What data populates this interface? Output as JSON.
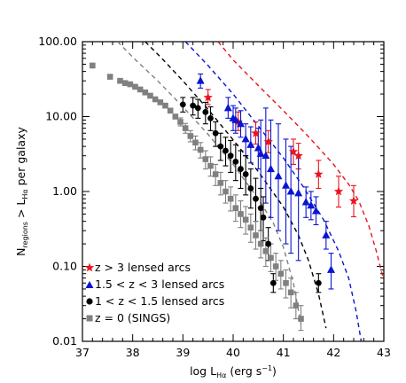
{
  "chart_data": {
    "type": "scatter",
    "xlabel": "log L",
    "xlabel_sub": "Hα",
    "xlabel_unit_prefix": " (erg s",
    "xlabel_unit_sup": "−1",
    "xlabel_unit_suffix": ")",
    "ylabel_n": "N",
    "ylabel_n_sub": "regions",
    "ylabel_mid": " > L",
    "ylabel_l_sub": "Hα",
    "ylabel_end": " per galaxy",
    "xlim": [
      37,
      43
    ],
    "ylim": [
      0.01,
      100
    ],
    "yscale": "log",
    "x_ticks": [
      "37",
      "38",
      "39",
      "40",
      "41",
      "42",
      "43"
    ],
    "x_tick_values": [
      37,
      38,
      39,
      40,
      41,
      42,
      43
    ],
    "y_ticks": [
      "0.01",
      "0.10",
      "1.00",
      "10.00",
      "100.00"
    ],
    "y_tick_values": [
      0.01,
      0.1,
      1,
      10,
      100
    ],
    "legend_position": "bottom-left",
    "series": [
      {
        "name": "z > 3 lensed arcs",
        "color": "#e8141e",
        "marker": "star",
        "points": [
          {
            "x": 39.5,
            "y": 18,
            "lo": 14.5,
            "hi": 23
          },
          {
            "x": 40.1,
            "y": 8.5,
            "lo": 6.5,
            "hi": 11.5
          },
          {
            "x": 40.45,
            "y": 6.0,
            "lo": 4.3,
            "hi": 8.5
          },
          {
            "x": 40.7,
            "y": 4.6,
            "lo": 3.3,
            "hi": 6.5
          },
          {
            "x": 41.2,
            "y": 3.4,
            "lo": 2.3,
            "hi": 5.0
          },
          {
            "x": 41.3,
            "y": 3.0,
            "lo": 2.0,
            "hi": 4.4
          },
          {
            "x": 41.7,
            "y": 1.7,
            "lo": 1.1,
            "hi": 2.6
          },
          {
            "x": 42.1,
            "y": 1.0,
            "lo": 0.62,
            "hi": 1.6
          },
          {
            "x": 42.4,
            "y": 0.75,
            "lo": 0.46,
            "hi": 1.2
          }
        ]
      },
      {
        "name": "1.5 < z < 3 lensed arcs",
        "color": "#0a14d2",
        "marker": "triangle",
        "points": [
          {
            "x": 39.35,
            "y": 30,
            "lo": 24,
            "hi": 37
          },
          {
            "x": 39.9,
            "y": 13,
            "lo": 9.5,
            "hi": 18
          },
          {
            "x": 40.0,
            "y": 9.5,
            "lo": 6.5,
            "hi": 14
          },
          {
            "x": 40.05,
            "y": 9.0,
            "lo": 6.0,
            "hi": 13
          },
          {
            "x": 40.15,
            "y": 8.0,
            "lo": 5.3,
            "hi": 12
          },
          {
            "x": 40.25,
            "y": 5.0,
            "lo": 3.0,
            "hi": 8.0
          },
          {
            "x": 40.35,
            "y": 4.2,
            "lo": 2.4,
            "hi": 7.3
          },
          {
            "x": 40.5,
            "y": 3.8,
            "lo": 2.0,
            "hi": 7.0
          },
          {
            "x": 40.55,
            "y": 3.2,
            "lo": 1.1,
            "hi": 9.0
          },
          {
            "x": 40.65,
            "y": 3.0,
            "lo": 0.7,
            "hi": 13
          },
          {
            "x": 40.75,
            "y": 2.0,
            "lo": 0.45,
            "hi": 9.0
          },
          {
            "x": 40.9,
            "y": 1.6,
            "lo": 0.3,
            "hi": 8.0
          },
          {
            "x": 41.05,
            "y": 1.2,
            "lo": 0.2,
            "hi": 5.0
          },
          {
            "x": 41.15,
            "y": 1.0,
            "lo": 0.15,
            "hi": 4.0
          },
          {
            "x": 41.3,
            "y": 0.95,
            "lo": 0.12,
            "hi": 3.0
          },
          {
            "x": 41.45,
            "y": 0.72,
            "lo": 0.45,
            "hi": 1.15
          },
          {
            "x": 41.55,
            "y": 0.65,
            "lo": 0.42,
            "hi": 1.0
          },
          {
            "x": 41.65,
            "y": 0.55,
            "lo": 0.36,
            "hi": 0.85
          },
          {
            "x": 41.85,
            "y": 0.26,
            "lo": 0.17,
            "hi": 0.4
          },
          {
            "x": 41.95,
            "y": 0.09,
            "lo": 0.05,
            "hi": 0.15
          }
        ]
      },
      {
        "name": "1 < z < 1.5 lensed arcs",
        "color": "#000000",
        "marker": "circle",
        "points": [
          {
            "x": 39.0,
            "y": 14.5,
            "lo": 11.5,
            "hi": 18
          },
          {
            "x": 39.2,
            "y": 14.0,
            "lo": 10.5,
            "hi": 18
          },
          {
            "x": 39.3,
            "y": 13.0,
            "lo": 9.5,
            "hi": 17
          },
          {
            "x": 39.45,
            "y": 11.5,
            "lo": 8.0,
            "hi": 15.5
          },
          {
            "x": 39.55,
            "y": 9.5,
            "lo": 6.5,
            "hi": 13.5
          },
          {
            "x": 39.65,
            "y": 6.0,
            "lo": 4.0,
            "hi": 8.5
          },
          {
            "x": 39.75,
            "y": 4.0,
            "lo": 2.6,
            "hi": 6.0
          },
          {
            "x": 39.85,
            "y": 3.5,
            "lo": 2.2,
            "hi": 5.3
          },
          {
            "x": 39.95,
            "y": 3.0,
            "lo": 1.8,
            "hi": 4.8
          },
          {
            "x": 40.05,
            "y": 2.5,
            "lo": 1.4,
            "hi": 4.2
          },
          {
            "x": 40.15,
            "y": 2.0,
            "lo": 1.1,
            "hi": 3.5
          },
          {
            "x": 40.25,
            "y": 1.7,
            "lo": 0.9,
            "hi": 3.0
          },
          {
            "x": 40.35,
            "y": 1.1,
            "lo": 0.6,
            "hi": 2.0
          },
          {
            "x": 40.45,
            "y": 0.8,
            "lo": 0.4,
            "hi": 1.5
          },
          {
            "x": 40.55,
            "y": 0.6,
            "lo": 0.3,
            "hi": 1.1
          },
          {
            "x": 40.6,
            "y": 0.45,
            "lo": 0.22,
            "hi": 0.85
          },
          {
            "x": 40.7,
            "y": 0.2,
            "lo": 0.12,
            "hi": 0.33
          },
          {
            "x": 40.8,
            "y": 0.06,
            "lo": 0.045,
            "hi": 0.08
          },
          {
            "x": 41.7,
            "y": 0.06,
            "lo": 0.045,
            "hi": 0.08
          }
        ]
      },
      {
        "name": "z = 0 (SINGS)",
        "color": "#808080",
        "marker": "square",
        "points": [
          {
            "x": 37.2,
            "y": 48
          },
          {
            "x": 37.55,
            "y": 34
          },
          {
            "x": 37.75,
            "y": 30
          },
          {
            "x": 37.85,
            "y": 28
          },
          {
            "x": 37.95,
            "y": 27
          },
          {
            "x": 38.05,
            "y": 25
          },
          {
            "x": 38.15,
            "y": 23
          },
          {
            "x": 38.25,
            "y": 21
          },
          {
            "x": 38.35,
            "y": 19
          },
          {
            "x": 38.45,
            "y": 17
          },
          {
            "x": 38.55,
            "y": 15.5
          },
          {
            "x": 38.65,
            "y": 14
          },
          {
            "x": 38.75,
            "y": 12
          },
          {
            "x": 38.85,
            "y": 10
          },
          {
            "x": 38.95,
            "y": 8.5,
            "lo": 7.5,
            "hi": 9.6
          },
          {
            "x": 39.05,
            "y": 7.0,
            "lo": 6.0,
            "hi": 8.1
          },
          {
            "x": 39.15,
            "y": 5.5,
            "lo": 4.6,
            "hi": 6.5
          },
          {
            "x": 39.25,
            "y": 4.5,
            "lo": 3.6,
            "hi": 5.5
          },
          {
            "x": 39.35,
            "y": 3.6,
            "lo": 2.8,
            "hi": 4.5
          },
          {
            "x": 39.45,
            "y": 2.7,
            "lo": 2.0,
            "hi": 3.5
          },
          {
            "x": 39.55,
            "y": 2.2,
            "lo": 1.6,
            "hi": 2.9
          },
          {
            "x": 39.65,
            "y": 1.7,
            "lo": 1.2,
            "hi": 2.3
          },
          {
            "x": 39.75,
            "y": 1.3,
            "lo": 0.9,
            "hi": 1.8
          },
          {
            "x": 39.85,
            "y": 1.0,
            "lo": 0.7,
            "hi": 1.4
          },
          {
            "x": 39.95,
            "y": 0.8,
            "lo": 0.55,
            "hi": 1.15
          },
          {
            "x": 40.05,
            "y": 0.6,
            "lo": 0.4,
            "hi": 0.9
          },
          {
            "x": 40.15,
            "y": 0.5,
            "lo": 0.33,
            "hi": 0.75
          },
          {
            "x": 40.25,
            "y": 0.42,
            "lo": 0.27,
            "hi": 0.63
          },
          {
            "x": 40.35,
            "y": 0.33,
            "lo": 0.21,
            "hi": 0.5
          },
          {
            "x": 40.45,
            "y": 0.26,
            "lo": 0.17,
            "hi": 0.4
          },
          {
            "x": 40.55,
            "y": 0.2,
            "lo": 0.13,
            "hi": 0.3
          },
          {
            "x": 40.65,
            "y": 0.16,
            "lo": 0.1,
            "hi": 0.24
          },
          {
            "x": 40.75,
            "y": 0.13,
            "lo": 0.085,
            "hi": 0.2
          },
          {
            "x": 40.85,
            "y": 0.1,
            "lo": 0.065,
            "hi": 0.15
          },
          {
            "x": 40.95,
            "y": 0.08,
            "lo": 0.05,
            "hi": 0.12
          },
          {
            "x": 41.05,
            "y": 0.06,
            "lo": 0.038,
            "hi": 0.09
          },
          {
            "x": 41.15,
            "y": 0.045,
            "lo": 0.028,
            "hi": 0.07
          },
          {
            "x": 41.25,
            "y": 0.03,
            "lo": 0.02,
            "hi": 0.045
          },
          {
            "x": 41.35,
            "y": 0.02,
            "lo": 0.014,
            "hi": 0.03
          }
        ]
      }
    ],
    "fit_curves": [
      {
        "color": "#e8141e",
        "style": "dashed",
        "x": [
          39.7,
          40.0,
          40.5,
          41.0,
          41.5,
          42.0,
          42.3,
          42.5,
          42.7,
          42.85,
          43.0
        ],
        "y": [
          100,
          57,
          26,
          12,
          5.4,
          2.3,
          1.25,
          0.75,
          0.35,
          0.16,
          0.065
        ]
      },
      {
        "color": "#0a14d2",
        "style": "dashed",
        "x": [
          39.05,
          39.5,
          40.0,
          40.5,
          41.0,
          41.4,
          41.8,
          42.1,
          42.3,
          42.45,
          42.55
        ],
        "y": [
          100,
          48,
          20,
          7.5,
          2.8,
          1.15,
          0.42,
          0.16,
          0.07,
          0.025,
          0.01
        ]
      },
      {
        "color": "#000000",
        "style": "dashed",
        "x": [
          38.25,
          38.6,
          39.0,
          39.5,
          40.0,
          40.5,
          41.0,
          41.3,
          41.5,
          41.7,
          41.85
        ],
        "y": [
          100,
          58,
          30,
          12.5,
          4.9,
          1.85,
          0.62,
          0.26,
          0.12,
          0.043,
          0.015
        ]
      },
      {
        "color": "#808080",
        "style": "dashed",
        "x": [
          37.7,
          38.0,
          38.5,
          39.0,
          39.5,
          40.0,
          40.5,
          40.8,
          41.0,
          41.2,
          41.35
        ],
        "y": [
          100,
          62,
          30,
          13.5,
          5.8,
          2.3,
          0.8,
          0.38,
          0.18,
          0.06,
          0.017
        ]
      }
    ]
  }
}
